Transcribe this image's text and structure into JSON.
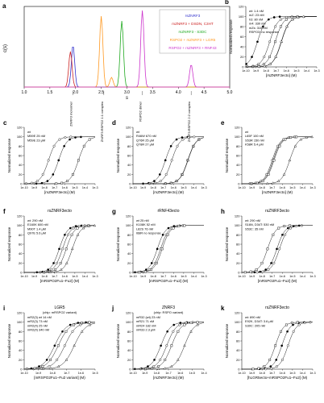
{
  "figure": {
    "panels": [
      {
        "id": "a",
        "label": "a",
        "ylabel": "c(s)",
        "xlabel": "s",
        "legend": [
          {
            "text": "rsZNRF3",
            "color": "#3333cc"
          },
          {
            "text": "mZNRF3 + DSDN, C3HT",
            "color": "#cc2222"
          },
          {
            "text": "rsZNRF3 - S3DC",
            "color": "#22aa22"
          },
          {
            "text": "RSPO2 + rsZNRF3 + LGR5",
            "color": "#ff9922"
          },
          {
            "text": "RSPO2 + rsZNRF3 + RNF43",
            "color": "#cc33cc"
          }
        ],
        "annotations": [
          "ZNRF3 monomer",
          "ZNRF3:RSPO2 1:1 complex",
          "RSPO2 dimer",
          "ZNRF3:RSPO2 2:2 complex"
        ]
      }
    ],
    "subpanels": [
      {
        "id": "b",
        "label": "b",
        "title": "",
        "xlabel": "[rsZNRF3ecto] (M)",
        "legend": [
          "wt: 1.4 nM",
          "mZ: 23 nM",
          "h3: 80 nM",
          "m4: 330 nM",
          "mZs: 310 nM",
          "RSPO3: no response"
        ]
      },
      {
        "id": "c",
        "label": "c",
        "title": "",
        "xlabel": "[mZNRF3ecto] (M)",
        "legend": [
          "wt",
          "M59E 25 nM",
          "M59E 23 μM"
        ]
      },
      {
        "id": "d",
        "label": "d",
        "title": "",
        "xlabel": "[mZNRF3ecto] (M)",
        "legend": [
          "wt",
          "R46W 670 nM",
          "Q76R 25 μM",
          "Q78R 27 μM"
        ]
      },
      {
        "id": "e",
        "label": "e",
        "title": "",
        "xlabel": "[mZNRF3ecto] (M)",
        "legend": [
          "wt",
          "L65F 100 nM",
          "S53R 150 nM",
          "K58R 5.4 μM"
        ]
      },
      {
        "id": "f",
        "label": "f",
        "title": "rsZNRF3ecto",
        "xlabel": "[mRSPO2Fu1–Fu2] (M)",
        "legend": [
          "wt: 290 nM",
          "E160K 600 nM",
          "M90T 1.4 μM",
          "Q97E 5.6 μM"
        ]
      },
      {
        "id": "g",
        "label": "g",
        "title": "rRNF43ecto",
        "xlabel": "[mRSPO2Fu1–Fu2] (M)",
        "legend": [
          "wt 25 nM",
          "K108K 52 nM",
          "L82S 76 nM",
          "I68R no response"
        ]
      },
      {
        "id": "h",
        "label": "h",
        "title": "rsZNRF3ecto",
        "xlabel": "[mRSPO2Fu1–Fu2] (M)",
        "legend": [
          "wt: 290 nM",
          "S16N, D34T: 530 nM",
          "S53C: 35 nM"
        ]
      },
      {
        "id": "i",
        "label": "i",
        "title": "LGR5",
        "subtitle": "(chip: mRSPO2 variant)",
        "xlabel": "[mRSPO2Fu1–Fu2 variant] (M)",
        "legend": [
          "mR2(3) wt 14 nM",
          "mR2(3) 73 nM",
          "mR2(4) 25 nM",
          "mR2(4) 340 nM"
        ]
      },
      {
        "id": "j",
        "label": "j",
        "title": "ZNRF3",
        "subtitle": "(chip: RSPO variant)",
        "xlabel": "[rsZNRF3ecto] (M)",
        "legend": [
          "mR32 (wt) 23 nM",
          "mR21 71 nM",
          "mR24 182 nM",
          "mR33 2.3 μM"
        ]
      },
      {
        "id": "k",
        "label": "k",
        "title": "rsZNRF3ecto",
        "xlabel": "[hLGR5ecto+mRSPO2Fu1–Fu2] (M)",
        "legend": [
          "wt: 890 nM",
          "E92K, D34T: 3.6 μM",
          "S30C: 205 nM"
        ]
      }
    ]
  },
  "chart_data": [
    {
      "type": "line",
      "title": "",
      "xlabel": "s",
      "ylabel": "c(s)",
      "xlim": [
        1.0,
        5.0
      ],
      "ylim": [
        0,
        1
      ],
      "xticks": [
        1.0,
        1.5,
        2.0,
        2.5,
        3.0,
        3.5,
        4.0,
        4.5,
        5.0
      ],
      "series": [
        {
          "name": "rsZNRF3",
          "color": "#3333cc",
          "peaks": [
            [
              1.95,
              0.52
            ]
          ]
        },
        {
          "name": "mZNRF3 + DSDN, C3HT",
          "color": "#cc2222",
          "peaks": [
            [
              1.9,
              0.44
            ]
          ]
        },
        {
          "name": "rsZNRF3 - S3DC",
          "color": "#22aa22",
          "peaks": [
            [
              2.9,
              0.82
            ]
          ]
        },
        {
          "name": "RSPO2 + rsZNRF3 + LGR5",
          "color": "#ff9922",
          "peaks": [
            [
              2.5,
              0.88
            ],
            [
              2.7,
              0.12
            ]
          ]
        },
        {
          "name": "RSPO2 + rsZNRF3 + RNF43",
          "color": "#cc33cc",
          "peaks": [
            [
              3.3,
              0.95
            ],
            [
              4.25,
              0.28
            ]
          ]
        }
      ]
    },
    {
      "type": "scatter",
      "panel": "b",
      "ylabel": "Normalized response",
      "ylim": [
        0,
        120
      ],
      "xlim_log": [
        -10,
        -3
      ],
      "ec50_log": [
        -8.85,
        -7.64,
        -7.1,
        -6.48,
        -6.51
      ],
      "series_names": [
        "wt",
        "mZ",
        "h3",
        "m4",
        "mZs"
      ]
    },
    {
      "type": "scatter",
      "panel": "c",
      "ylabel": "Normalized response",
      "ylim": [
        0,
        120
      ],
      "xlim_log": [
        -10,
        -3
      ],
      "ec50_log": [
        -6.6,
        -7.6,
        -4.64
      ],
      "series_names": [
        "wt",
        "M59E",
        "M59E"
      ]
    },
    {
      "type": "scatter",
      "panel": "d",
      "ylabel": "Normalized response",
      "ylim": [
        0,
        120
      ],
      "xlim_log": [
        -10,
        -3
      ],
      "ec50_log": [
        -6.8,
        -6.17,
        -4.6,
        -4.57
      ],
      "series_names": [
        "wt",
        "R46W",
        "Q76R",
        "Q78R"
      ]
    },
    {
      "type": "scatter",
      "panel": "e",
      "ylabel": "Normalized response",
      "ylim": [
        0,
        120
      ],
      "xlim_log": [
        -10,
        -3
      ],
      "ec50_log": [
        -6.9,
        -7.0,
        -6.82,
        -5.27
      ],
      "series_names": [
        "wt",
        "L65F",
        "S53R",
        "K58R"
      ]
    },
    {
      "type": "scatter",
      "panel": "f",
      "ylabel": "Normalized response",
      "ylim": [
        0,
        120
      ],
      "xlim_log": [
        -10,
        -3
      ],
      "ec50_log": [
        -6.54,
        -6.22,
        -5.85,
        -5.25
      ],
      "series_names": [
        "wt",
        "E160K",
        "M90T",
        "Q97E"
      ]
    },
    {
      "type": "scatter",
      "panel": "g",
      "ylabel": "Normalized response",
      "ylim": [
        0,
        120
      ],
      "xlim_log": [
        -10,
        -3
      ],
      "ec50_log": [
        -7.6,
        -7.28,
        -7.12
      ],
      "series_names": [
        "wt",
        "K108K",
        "L82S"
      ]
    },
    {
      "type": "scatter",
      "panel": "h",
      "ylabel": "Normalized response",
      "ylim": [
        0,
        120
      ],
      "xlim_log": [
        -10,
        -3
      ],
      "ec50_log": [
        -6.54,
        -6.28,
        -7.46
      ],
      "series_names": [
        "wt",
        "S16N, D34T",
        "S53C"
      ]
    },
    {
      "type": "scatter",
      "panel": "i",
      "ylabel": "Normalized response",
      "ylim": [
        0,
        120
      ],
      "xlim_log": [
        -10,
        -5
      ],
      "ec50_log": [
        -7.85,
        -7.14,
        -7.6,
        -6.47
      ],
      "series_names": [
        "mR2(3) wt",
        "mR2(3)",
        "mR2(4)",
        "mR2(4)"
      ]
    },
    {
      "type": "scatter",
      "panel": "j",
      "ylabel": "Normalized response",
      "ylim": [
        0,
        120
      ],
      "xlim_log": [
        -10,
        -4
      ],
      "ec50_log": [
        -7.64,
        -7.15,
        -6.74,
        -5.64
      ],
      "series_names": [
        "mR32 (wt)",
        "mR21",
        "mR24",
        "mR33"
      ]
    },
    {
      "type": "scatter",
      "panel": "k",
      "ylabel": "Normalized response",
      "ylim": [
        0,
        120
      ],
      "xlim_log": [
        -10,
        -3
      ],
      "ec50_log": [
        -6.05,
        -5.44,
        -6.69
      ],
      "series_names": [
        "wt",
        "E92K, D34T",
        "S30C"
      ]
    }
  ]
}
